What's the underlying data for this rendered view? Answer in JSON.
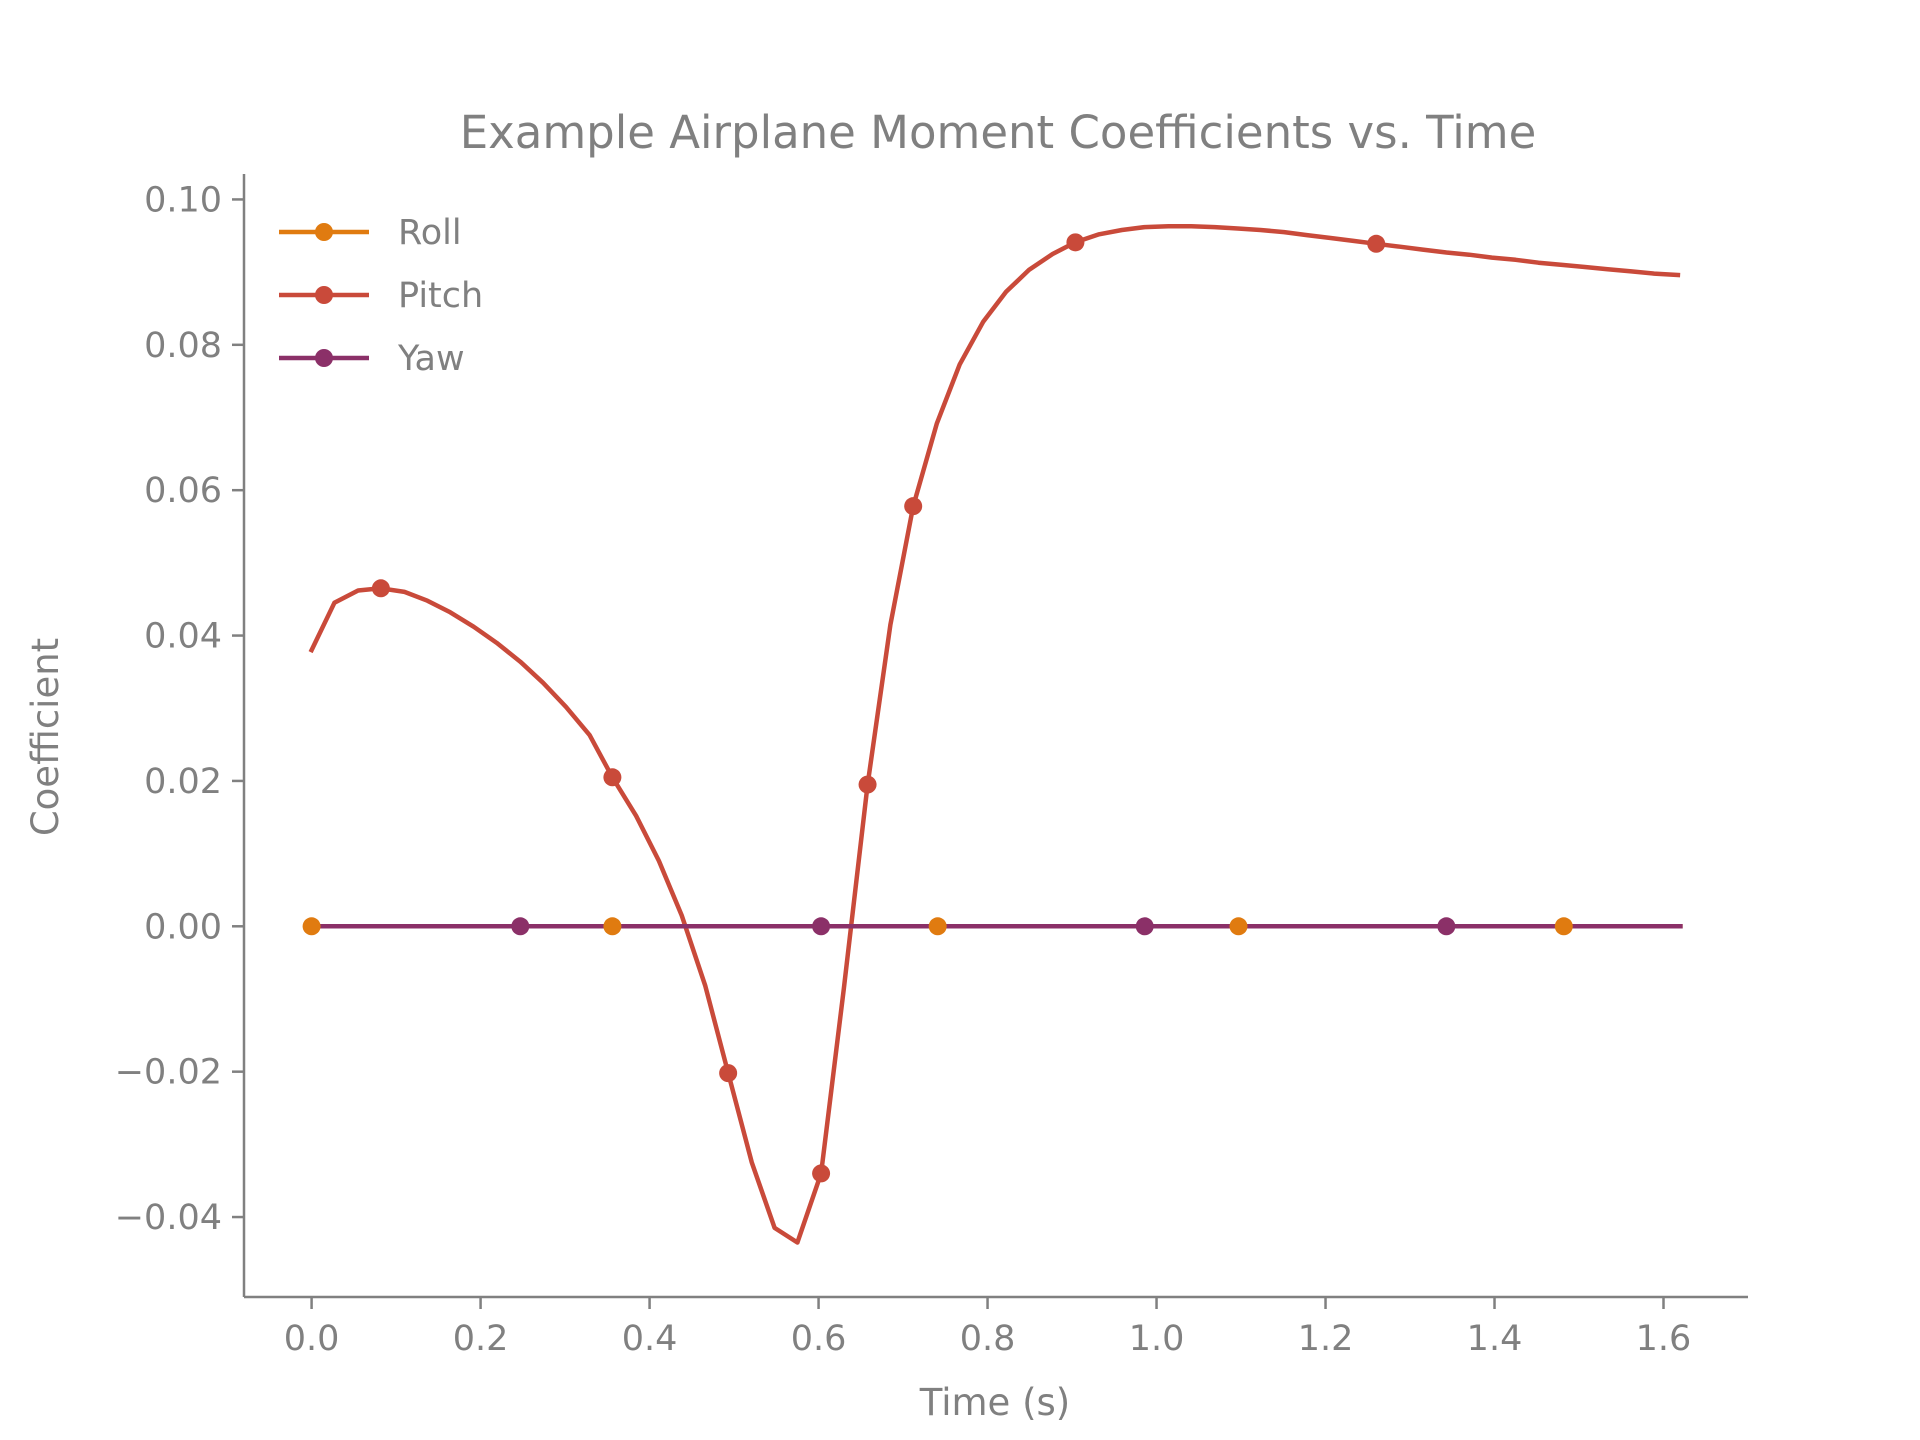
{
  "chart_data": {
    "type": "line",
    "title": "Example Airplane Moment Coefficients vs. Time",
    "xlabel": "Time (s)",
    "ylabel": "Coefficient",
    "xlim": [
      -0.08,
      1.7
    ],
    "ylim": [
      -0.051,
      0.1035
    ],
    "xticks": [
      0.0,
      0.2,
      0.4,
      0.6,
      0.8,
      1.0,
      1.2,
      1.4,
      1.6
    ],
    "xtick_labels": [
      "0.0",
      "0.2",
      "0.4",
      "0.6",
      "0.8",
      "1.0",
      "1.2",
      "1.4",
      "1.6"
    ],
    "yticks": [
      -0.04,
      -0.02,
      0.0,
      0.02,
      0.04,
      0.06,
      0.08,
      0.1
    ],
    "ytick_labels": [
      "−0.04",
      "−0.02",
      "0.00",
      "0.02",
      "0.04",
      "0.06",
      "0.08",
      "0.10"
    ],
    "grid": false,
    "legend": "top-left",
    "series": [
      {
        "name": "Roll",
        "color": "#e07b10",
        "x": [
          0.0,
          1.62
        ],
        "y": [
          0.0,
          0.0
        ],
        "marker_x": [
          0.0,
          0.356,
          0.741,
          1.097,
          1.482
        ],
        "marker_y": [
          0.0,
          0.0,
          0.0,
          0.0,
          0.0
        ]
      },
      {
        "name": "Pitch",
        "color": "#c94a3a",
        "x": [
          0.0,
          0.027,
          0.055,
          0.082,
          0.11,
          0.137,
          0.164,
          0.192,
          0.219,
          0.247,
          0.274,
          0.301,
          0.329,
          0.356,
          0.384,
          0.411,
          0.438,
          0.466,
          0.493,
          0.521,
          0.548,
          0.575,
          0.603,
          0.63,
          0.658,
          0.685,
          0.712,
          0.74,
          0.767,
          0.795,
          0.822,
          0.849,
          0.877,
          0.904,
          0.932,
          0.959,
          0.986,
          1.014,
          1.041,
          1.069,
          1.096,
          1.123,
          1.151,
          1.178,
          1.206,
          1.233,
          1.26,
          1.288,
          1.315,
          1.343,
          1.37,
          1.397,
          1.425,
          1.452,
          1.48,
          1.507,
          1.534,
          1.562,
          1.589,
          1.617
        ],
        "y": [
          0.038,
          0.0445,
          0.0462,
          0.0465,
          0.046,
          0.0448,
          0.0432,
          0.0412,
          0.039,
          0.0364,
          0.0335,
          0.0302,
          0.0263,
          0.0205,
          0.0152,
          0.009,
          0.0015,
          -0.0082,
          -0.0202,
          -0.0325,
          -0.0415,
          -0.0435,
          -0.034,
          -0.0085,
          0.0195,
          0.0415,
          0.0578,
          0.0692,
          0.0773,
          0.0832,
          0.0873,
          0.0903,
          0.0925,
          0.0941,
          0.0952,
          0.0958,
          0.0962,
          0.0963,
          0.0963,
          0.0962,
          0.096,
          0.0958,
          0.0955,
          0.0951,
          0.0947,
          0.0943,
          0.0939,
          0.0935,
          0.0931,
          0.0927,
          0.0924,
          0.092,
          0.0917,
          0.0913,
          0.091,
          0.0907,
          0.0904,
          0.0901,
          0.0898,
          0.0896
        ],
        "marker_x": [
          0.082,
          0.356,
          0.493,
          0.603,
          0.658,
          0.712,
          0.904,
          1.26
        ],
        "marker_y": [
          0.0465,
          0.0205,
          -0.0202,
          -0.034,
          0.0195,
          0.0578,
          0.0941,
          0.0939
        ]
      },
      {
        "name": "Yaw",
        "color": "#8b3068",
        "x": [
          0.0,
          1.62
        ],
        "y": [
          0.0,
          0.0
        ],
        "marker_x": [
          0.247,
          0.603,
          0.986,
          1.343
        ],
        "marker_y": [
          0.0,
          0.0,
          0.0,
          0.0
        ]
      }
    ]
  }
}
